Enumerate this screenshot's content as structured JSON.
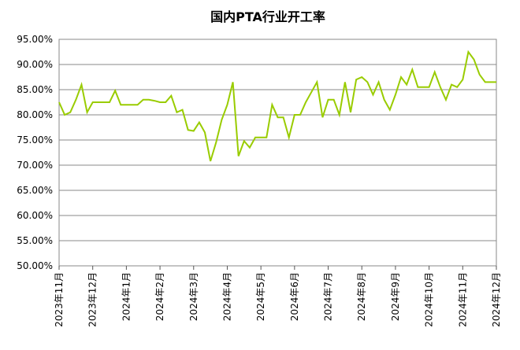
{
  "chart_data": {
    "type": "line",
    "title": "国内PTA行业开工率",
    "categories": [
      "2023年11月",
      null,
      null,
      null,
      null,
      null,
      "2023年12月",
      null,
      null,
      null,
      null,
      null,
      "2024年1月",
      null,
      null,
      null,
      null,
      null,
      "2024年2月",
      null,
      null,
      null,
      null,
      null,
      "2024年3月",
      null,
      null,
      null,
      null,
      null,
      "2024年4月",
      null,
      null,
      null,
      null,
      null,
      "2024年5月",
      null,
      null,
      null,
      null,
      null,
      "2024年6月",
      null,
      null,
      null,
      null,
      null,
      "2024年7月",
      null,
      null,
      null,
      null,
      null,
      "2024年8月",
      null,
      null,
      null,
      null,
      null,
      "2024年9月",
      null,
      null,
      null,
      null,
      null,
      "2024年10月",
      null,
      null,
      null,
      null,
      null,
      "2024年11月",
      null,
      null,
      null,
      null,
      null,
      "2024年12月"
    ],
    "series": [
      {
        "name": "国内PTA行业开工率",
        "color": "#99cc00",
        "values": [
          82.5,
          80,
          80.5,
          83,
          86,
          80.5,
          82.5,
          82.5,
          82.5,
          82.5,
          84.8,
          82,
          82,
          82,
          82,
          83,
          83,
          82.8,
          82.5,
          82.5,
          83.8,
          80.5,
          81,
          77,
          76.8,
          78.5,
          76.5,
          70.8,
          74.5,
          79,
          82,
          86.5,
          71.8,
          74.8,
          73.5,
          75.5,
          75.5,
          75.5,
          82,
          79.5,
          79.5,
          75.5,
          80,
          80,
          82.5,
          84.5,
          86.5,
          79.5,
          83,
          83,
          80,
          86.5,
          80.5,
          87,
          87.5,
          86.5,
          84,
          86.5,
          83,
          81,
          84,
          87.5,
          86,
          89,
          85.5,
          85.5,
          85.5,
          88.5,
          85.5,
          83,
          86,
          85.5,
          87,
          92.5,
          91,
          88,
          86.5,
          86.5,
          86.5
        ]
      }
    ],
    "ylim": [
      50,
      95
    ],
    "yticks": [
      {
        "value": 50,
        "label": "50.00%"
      },
      {
        "value": 55,
        "label": "55.00%"
      },
      {
        "value": 60,
        "label": "60.00%"
      },
      {
        "value": 65,
        "label": "65.00%"
      },
      {
        "value": 70,
        "label": "70.00%"
      },
      {
        "value": 75,
        "label": "75.00%"
      },
      {
        "value": 80,
        "label": "80.00%"
      },
      {
        "value": 85,
        "label": "85.00%"
      },
      {
        "value": 90,
        "label": "90.00%"
      },
      {
        "value": 95,
        "label": "95.00%"
      }
    ],
    "grid": true
  }
}
